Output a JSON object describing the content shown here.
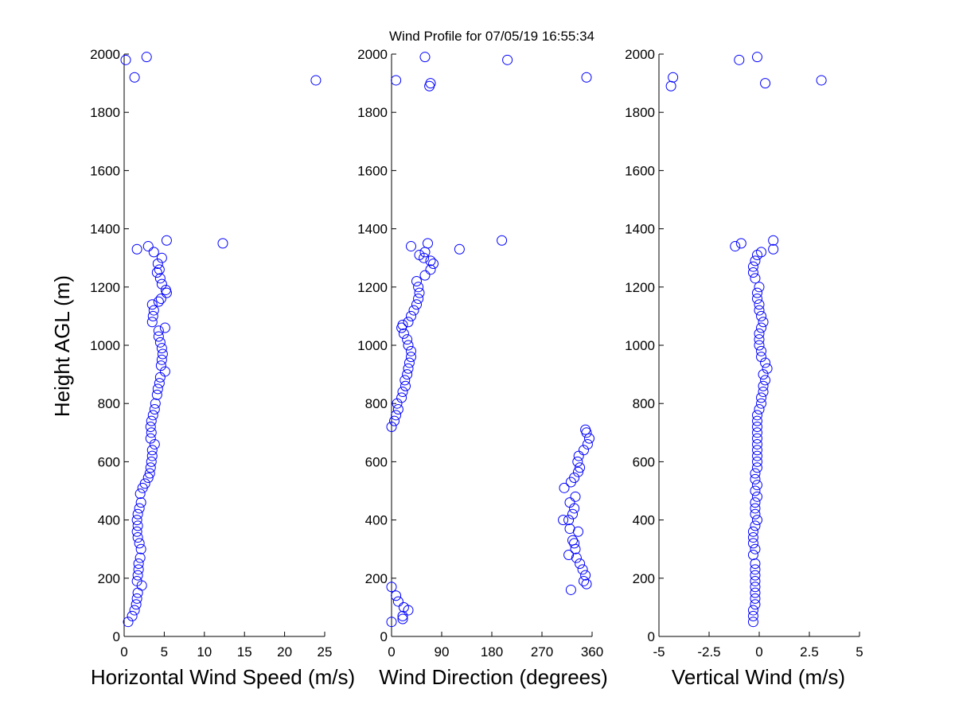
{
  "title": "Wind Profile for  07/05/19 16:55:34",
  "colors": {
    "marker": "#0000ff",
    "axis": "#000000",
    "background": "#ffffff"
  },
  "chart_data": [
    {
      "type": "scatter",
      "xlabel": "Horizontal Wind Speed (m/s)",
      "ylabel": "Height AGL (m)",
      "xlim": [
        0,
        25
      ],
      "ylim": [
        0,
        2000
      ],
      "xticks": [
        "0",
        "5",
        "10",
        "15",
        "20",
        "25"
      ],
      "yticks": [
        "0",
        "200",
        "400",
        "600",
        "800",
        "1000",
        "1200",
        "1400",
        "1600",
        "1800",
        "2000"
      ],
      "grid": false,
      "marker": "open-circle",
      "points": [
        [
          0.5,
          50
        ],
        [
          1,
          70
        ],
        [
          1.3,
          90
        ],
        [
          1.5,
          110
        ],
        [
          1.6,
          130
        ],
        [
          1.7,
          150
        ],
        [
          2.2,
          175
        ],
        [
          1.6,
          190
        ],
        [
          1.7,
          210
        ],
        [
          1.8,
          230
        ],
        [
          1.8,
          250
        ],
        [
          2,
          270
        ],
        [
          2.1,
          300
        ],
        [
          1.9,
          320
        ],
        [
          1.7,
          340
        ],
        [
          1.6,
          360
        ],
        [
          1.7,
          380
        ],
        [
          1.6,
          400
        ],
        [
          1.7,
          420
        ],
        [
          1.9,
          440
        ],
        [
          2.1,
          460
        ],
        [
          2,
          490
        ],
        [
          2.3,
          510
        ],
        [
          2.6,
          525
        ],
        [
          3,
          545
        ],
        [
          3.2,
          560
        ],
        [
          3.3,
          580
        ],
        [
          3.4,
          600
        ],
        [
          3.5,
          620
        ],
        [
          3.5,
          640
        ],
        [
          3.8,
          660
        ],
        [
          3.3,
          680
        ],
        [
          3.4,
          700
        ],
        [
          3.3,
          720
        ],
        [
          3.4,
          740
        ],
        [
          3.6,
          760
        ],
        [
          3.8,
          780
        ],
        [
          3.9,
          800
        ],
        [
          4.1,
          830
        ],
        [
          4.2,
          850
        ],
        [
          4.4,
          870
        ],
        [
          4.5,
          890
        ],
        [
          5.1,
          910
        ],
        [
          4.6,
          930
        ],
        [
          4.7,
          950
        ],
        [
          4.8,
          970
        ],
        [
          4.7,
          990
        ],
        [
          4.5,
          1010
        ],
        [
          4.3,
          1030
        ],
        [
          5.1,
          1060
        ],
        [
          4.3,
          1050
        ],
        [
          3.5,
          1080
        ],
        [
          3.6,
          1100
        ],
        [
          3.7,
          1120
        ],
        [
          3.5,
          1140
        ],
        [
          4.3,
          1150
        ],
        [
          4.6,
          1160
        ],
        [
          5.3,
          1180
        ],
        [
          5.2,
          1190
        ],
        [
          4.7,
          1210
        ],
        [
          4.5,
          1230
        ],
        [
          4.1,
          1250
        ],
        [
          4.4,
          1260
        ],
        [
          4.2,
          1280
        ],
        [
          4.7,
          1300
        ],
        [
          3.7,
          1320
        ],
        [
          1.6,
          1330
        ],
        [
          3,
          1340
        ],
        [
          12.3,
          1350
        ],
        [
          5.3,
          1360
        ],
        [
          23.9,
          1910
        ],
        [
          1.3,
          1920
        ],
        [
          0.2,
          1980
        ],
        [
          2.8,
          1990
        ]
      ]
    },
    {
      "type": "scatter",
      "xlabel": "Wind Direction (degrees)",
      "ylabel": "",
      "xlim": [
        0,
        360
      ],
      "ylim": [
        0,
        2000
      ],
      "xticks": [
        "0",
        "90",
        "180",
        "270",
        "360"
      ],
      "yticks": [
        "0",
        "200",
        "400",
        "600",
        "800",
        "1000",
        "1200",
        "1400",
        "1600",
        "1800",
        "2000"
      ],
      "grid": false,
      "marker": "open-circle",
      "points": [
        [
          0,
          50
        ],
        [
          20,
          60
        ],
        [
          20,
          70
        ],
        [
          30,
          90
        ],
        [
          22,
          100
        ],
        [
          12,
          120
        ],
        [
          8,
          140
        ],
        [
          0,
          170
        ],
        [
          322,
          160
        ],
        [
          350,
          180
        ],
        [
          345,
          190
        ],
        [
          348,
          210
        ],
        [
          343,
          230
        ],
        [
          338,
          250
        ],
        [
          332,
          270
        ],
        [
          318,
          280
        ],
        [
          330,
          300
        ],
        [
          328,
          320
        ],
        [
          325,
          330
        ],
        [
          335,
          360
        ],
        [
          320,
          370
        ],
        [
          308,
          400
        ],
        [
          318,
          400
        ],
        [
          325,
          420
        ],
        [
          328,
          440
        ],
        [
          320,
          460
        ],
        [
          330,
          480
        ],
        [
          310,
          510
        ],
        [
          322,
          530
        ],
        [
          328,
          545
        ],
        [
          335,
          565
        ],
        [
          338,
          580
        ],
        [
          334,
          600
        ],
        [
          336,
          620
        ],
        [
          345,
          640
        ],
        [
          352,
          660
        ],
        [
          355,
          680
        ],
        [
          350,
          700
        ],
        [
          348,
          710
        ],
        [
          0,
          720
        ],
        [
          5,
          740
        ],
        [
          8,
          760
        ],
        [
          12,
          780
        ],
        [
          10,
          800
        ],
        [
          18,
          820
        ],
        [
          20,
          840
        ],
        [
          25,
          860
        ],
        [
          24,
          880
        ],
        [
          28,
          900
        ],
        [
          30,
          920
        ],
        [
          32,
          940
        ],
        [
          35,
          960
        ],
        [
          35,
          980
        ],
        [
          30,
          1000
        ],
        [
          28,
          1020
        ],
        [
          22,
          1040
        ],
        [
          18,
          1060
        ],
        [
          20,
          1070
        ],
        [
          30,
          1080
        ],
        [
          35,
          1100
        ],
        [
          40,
          1120
        ],
        [
          45,
          1140
        ],
        [
          48,
          1160
        ],
        [
          50,
          1180
        ],
        [
          48,
          1200
        ],
        [
          45,
          1220
        ],
        [
          60,
          1240
        ],
        [
          70,
          1260
        ],
        [
          75,
          1280
        ],
        [
          70,
          1290
        ],
        [
          58,
          1300
        ],
        [
          50,
          1310
        ],
        [
          35,
          1340
        ],
        [
          65,
          1350
        ],
        [
          60,
          1320
        ],
        [
          122,
          1330
        ],
        [
          198,
          1360
        ],
        [
          8,
          1910
        ],
        [
          350,
          1920
        ],
        [
          68,
          1890
        ],
        [
          70,
          1900
        ],
        [
          60,
          1990
        ],
        [
          208,
          1980
        ]
      ]
    },
    {
      "type": "scatter",
      "xlabel": "Vertical Wind (m/s)",
      "ylabel": "",
      "xlim": [
        -5,
        5
      ],
      "xticks": [
        "-5",
        "-2.5",
        "0",
        "2.5",
        "5"
      ],
      "ylim": [
        0,
        2000
      ],
      "yticks": [
        "0",
        "200",
        "400",
        "600",
        "800",
        "1000",
        "1200",
        "1400",
        "1600",
        "1800",
        "2000"
      ],
      "grid": false,
      "marker": "open-circle",
      "points": [
        [
          -0.3,
          50
        ],
        [
          -0.3,
          70
        ],
        [
          -0.3,
          90
        ],
        [
          -0.2,
          110
        ],
        [
          -0.2,
          130
        ],
        [
          -0.2,
          150
        ],
        [
          -0.2,
          170
        ],
        [
          -0.2,
          190
        ],
        [
          -0.2,
          210
        ],
        [
          -0.2,
          230
        ],
        [
          -0.2,
          250
        ],
        [
          -0.3,
          280
        ],
        [
          -0.2,
          300
        ],
        [
          -0.3,
          320
        ],
        [
          -0.3,
          340
        ],
        [
          -0.3,
          360
        ],
        [
          -0.2,
          380
        ],
        [
          -0.1,
          400
        ],
        [
          -0.2,
          420
        ],
        [
          -0.2,
          440
        ],
        [
          -0.2,
          460
        ],
        [
          -0.1,
          480
        ],
        [
          -0.2,
          500
        ],
        [
          -0.1,
          520
        ],
        [
          -0.2,
          540
        ],
        [
          -0.2,
          560
        ],
        [
          -0.1,
          580
        ],
        [
          -0.1,
          600
        ],
        [
          -0.1,
          620
        ],
        [
          -0.1,
          640
        ],
        [
          -0.1,
          660
        ],
        [
          -0.1,
          680
        ],
        [
          -0.1,
          700
        ],
        [
          -0.1,
          720
        ],
        [
          -0.1,
          740
        ],
        [
          -0.1,
          760
        ],
        [
          0,
          780
        ],
        [
          0.1,
          800
        ],
        [
          0.1,
          820
        ],
        [
          0.2,
          840
        ],
        [
          0.2,
          860
        ],
        [
          0.3,
          880
        ],
        [
          0.2,
          900
        ],
        [
          0.4,
          920
        ],
        [
          0.3,
          940
        ],
        [
          0.1,
          960
        ],
        [
          0.1,
          980
        ],
        [
          0,
          1000
        ],
        [
          0,
          1020
        ],
        [
          0,
          1040
        ],
        [
          0.1,
          1060
        ],
        [
          0.2,
          1080
        ],
        [
          0.1,
          1100
        ],
        [
          0,
          1120
        ],
        [
          0,
          1140
        ],
        [
          -0.1,
          1160
        ],
        [
          -0.1,
          1180
        ],
        [
          0,
          1200
        ],
        [
          -0.2,
          1230
        ],
        [
          -0.3,
          1250
        ],
        [
          -0.3,
          1270
        ],
        [
          -0.2,
          1290
        ],
        [
          -0.1,
          1310
        ],
        [
          0.1,
          1320
        ],
        [
          0.7,
          1330
        ],
        [
          -1.2,
          1340
        ],
        [
          -0.9,
          1350
        ],
        [
          0.7,
          1360
        ],
        [
          -4.4,
          1890
        ],
        [
          0.3,
          1900
        ],
        [
          3.1,
          1910
        ],
        [
          -4.3,
          1920
        ],
        [
          -1,
          1980
        ],
        [
          -0.1,
          1990
        ]
      ]
    }
  ]
}
